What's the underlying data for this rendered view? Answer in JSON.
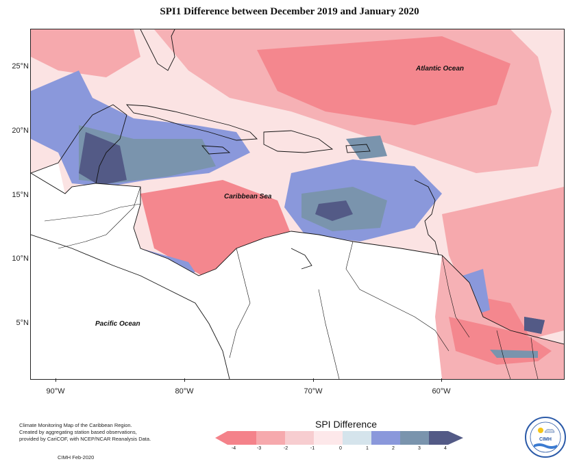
{
  "title": "SPI1 Difference between December 2019 and January 2020",
  "map": {
    "labels": {
      "atlantic": "Atlantic Ocean",
      "caribbean": "Caribbean Sea",
      "pacific": "Pacific Ocean"
    },
    "lat_ticks": [
      "25°N",
      "20°N",
      "15°N",
      "10°N",
      "5°N"
    ],
    "lon_ticks": [
      "90°W",
      "80°W",
      "70°W",
      "60°W"
    ]
  },
  "legend": {
    "title": "SPI Difference",
    "ticks": [
      "-4",
      "-3",
      "-2",
      "-1",
      "0",
      "1",
      "2",
      "3",
      "4"
    ],
    "colors": [
      "#f4828a",
      "#f6a9ad",
      "#f7cdd0",
      "#fde8ea",
      "#d5e4ec",
      "#8a98db",
      "#7a94ad",
      "#535a86"
    ]
  },
  "footer": {
    "description": "Climate Monitoring Map of the Caribbean Region.\nCreated by aggregating station based observations,\nprovided by CariCOF, with NCEP/NCAR Reanalysis Data.",
    "credit": "CIMH Feb-2020",
    "logo_text": "CIMH"
  }
}
